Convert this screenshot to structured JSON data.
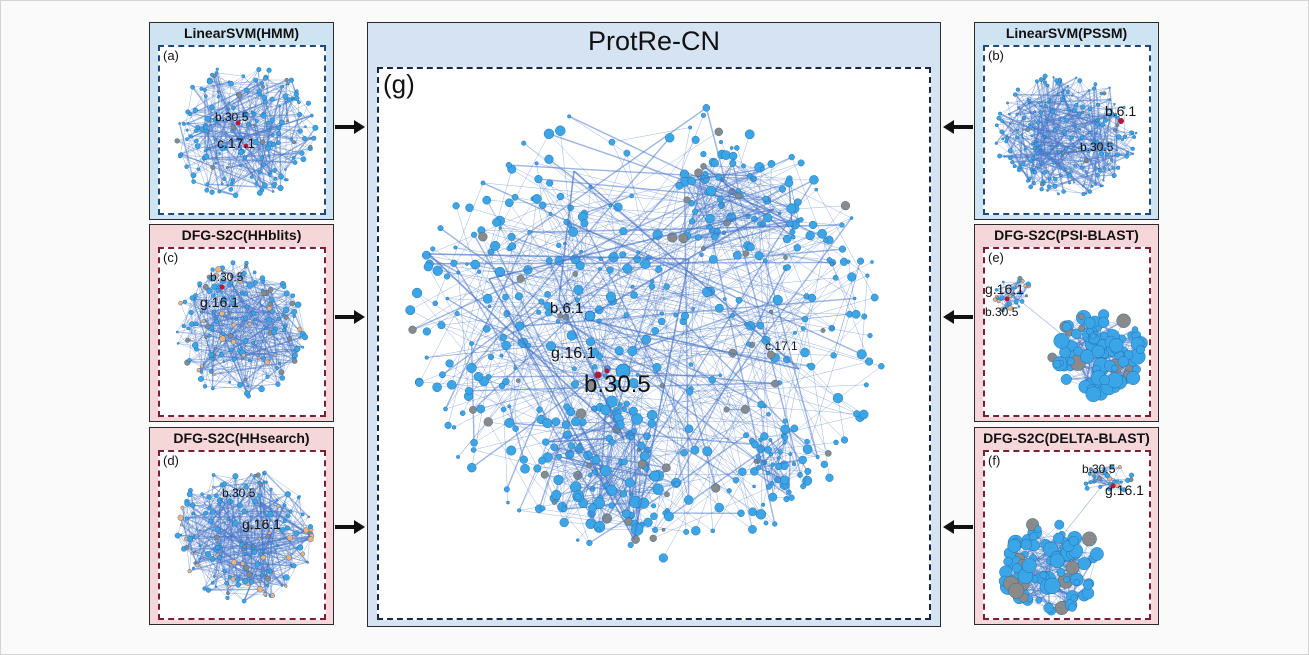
{
  "main": {
    "title": "ProtRe-CN",
    "tag": "(g)",
    "labels": {
      "b61": "b.6.1",
      "g161": "g.16.1",
      "b305": "b.30.5",
      "c171": "c.17.1"
    }
  },
  "panels": [
    {
      "id": "a",
      "title": "LinearSVM(HMM)",
      "tag": "(a)",
      "labels": [
        "b.30.5",
        "c.17.1"
      ]
    },
    {
      "id": "b",
      "title": "LinearSVM(PSSM)",
      "tag": "(b)",
      "labels": [
        "b.6.1",
        "b.30.5"
      ]
    },
    {
      "id": "c",
      "title": "DFG-S2C(HHblits)",
      "tag": "(c)",
      "labels": [
        "b.30.5",
        "g.16.1"
      ]
    },
    {
      "id": "e",
      "title": "DFG-S2C(PSI-BLAST)",
      "tag": "(e)",
      "labels": [
        "g.16.1",
        "b.30.5"
      ]
    },
    {
      "id": "d",
      "title": "DFG-S2C(HHsearch)",
      "tag": "(d)",
      "labels": [
        "b.30.5",
        "g.16.1"
      ]
    },
    {
      "id": "f",
      "title": "DFG-S2C(DELTA-BLAST)",
      "tag": "(f)",
      "labels": [
        "b.30.5",
        "g.16.1"
      ]
    }
  ],
  "colors": {
    "node": "#3aa6e8",
    "edge": "#4a78c8",
    "highlight": "#b2183a",
    "orange": "#f0b27a",
    "gray": "#8a8a8a"
  }
}
